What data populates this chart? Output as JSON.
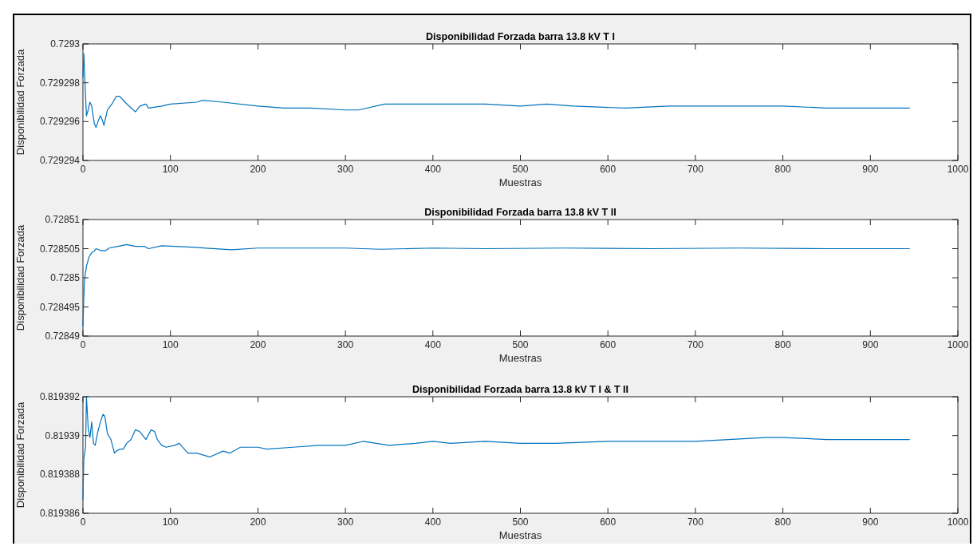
{
  "chart_data": [
    {
      "type": "line",
      "title": "Disponibilidad Forzada barra 13.8 kV T I",
      "xlabel": "Muestras",
      "ylabel": "Disponibilidad Forzada",
      "xlim": [
        0,
        1000
      ],
      "xticks": [
        0,
        100,
        200,
        300,
        400,
        500,
        600,
        700,
        800,
        900,
        1000
      ],
      "ylim": [
        0.729294,
        0.7293
      ],
      "yticks": [
        0.729294,
        0.729296,
        0.729298,
        0.7293
      ],
      "series": [
        {
          "color": "#0072bd",
          "x": [
            0,
            1,
            3,
            4,
            6,
            8,
            10,
            13,
            15,
            18,
            20,
            22,
            24,
            28,
            33,
            38,
            42,
            48,
            55,
            60,
            65,
            72,
            75,
            90,
            100,
            130,
            137,
            160,
            200,
            230,
            260,
            300,
            315,
            345,
            380,
            420,
            460,
            500,
            530,
            560,
            620,
            670,
            750,
            800,
            850,
            880,
            945
          ],
          "values": [
            0.7292983,
            0.7292995,
            0.7292973,
            0.7292963,
            0.7292966,
            0.729297,
            0.7292968,
            0.7292959,
            0.7292957,
            0.7292961,
            0.7292963,
            0.7292961,
            0.7292958,
            0.7292966,
            0.7292969,
            0.7292973,
            0.7292973,
            0.729297,
            0.7292967,
            0.7292965,
            0.7292968,
            0.7292969,
            0.7292967,
            0.7292968,
            0.7292969,
            0.729297,
            0.7292971,
            0.729297,
            0.7292968,
            0.7292967,
            0.7292967,
            0.7292966,
            0.7292966,
            0.7292969,
            0.7292969,
            0.7292969,
            0.7292969,
            0.7292968,
            0.7292969,
            0.7292968,
            0.7292967,
            0.7292968,
            0.7292968,
            0.7292968,
            0.7292967,
            0.7292967,
            0.7292967
          ]
        }
      ]
    },
    {
      "type": "line",
      "title": "Disponibilidad Forzada barra 13.8 kV T II",
      "xlabel": "Muestras",
      "ylabel": "Disponibilidad Forzada",
      "xlim": [
        0,
        1000
      ],
      "xticks": [
        0,
        100,
        200,
        300,
        400,
        500,
        600,
        700,
        800,
        900,
        1000
      ],
      "ylim": [
        0.72849,
        0.72851
      ],
      "yticks": [
        0.72849,
        0.728495,
        0.7285,
        0.728505,
        0.72851
      ],
      "series": [
        {
          "color": "#0072bd",
          "x": [
            0,
            1,
            2,
            4,
            7,
            10,
            13,
            15,
            20,
            25,
            30,
            40,
            50,
            60,
            70,
            75,
            90,
            120,
            170,
            200,
            300,
            340,
            400,
            460,
            550,
            650,
            750,
            850,
            945
          ],
          "values": [
            0.7284917,
            0.7284966,
            0.7284999,
            0.728502,
            0.7285036,
            0.7285043,
            0.7285046,
            0.728505,
            0.7285047,
            0.7285046,
            0.7285051,
            0.7285054,
            0.7285057,
            0.7285054,
            0.7285054,
            0.728505,
            0.7285055,
            0.7285053,
            0.7285048,
            0.7285051,
            0.7285051,
            0.7285049,
            0.7285051,
            0.728505,
            0.7285051,
            0.728505,
            0.7285051,
            0.728505,
            0.728505
          ]
        }
      ]
    },
    {
      "type": "line",
      "title": "Disponibilidad Forzada barra 13.8 kV T I & T II",
      "xlabel": "Muestras",
      "ylabel": "Disponibilidad Forzada",
      "xlim": [
        0,
        1000
      ],
      "xticks": [
        0,
        100,
        200,
        300,
        400,
        500,
        600,
        700,
        800,
        900,
        1000
      ],
      "ylim": [
        0.819386,
        0.819392
      ],
      "yticks": [
        0.819386,
        0.819388,
        0.81939,
        0.819392
      ],
      "series": [
        {
          "color": "#0072bd",
          "x": [
            0,
            1,
            3,
            4,
            6,
            8,
            10,
            12,
            14,
            17,
            20,
            23,
            25,
            28,
            32,
            36,
            38,
            42,
            46,
            50,
            55,
            60,
            65,
            72,
            78,
            82,
            85,
            90,
            95,
            105,
            110,
            120,
            130,
            145,
            160,
            168,
            180,
            200,
            210,
            240,
            270,
            300,
            320,
            350,
            380,
            400,
            420,
            460,
            500,
            540,
            600,
            650,
            700,
            780,
            800,
            850,
            900,
            945
          ],
          "values": [
            0.8193867,
            0.8193888,
            0.8193894,
            0.819392,
            0.8193904,
            0.8193899,
            0.8193907,
            0.8193896,
            0.8193895,
            0.8193902,
            0.8193907,
            0.8193911,
            0.819391,
            0.8193901,
            0.8193898,
            0.8193891,
            0.8193892,
            0.8193893,
            0.8193893,
            0.8193896,
            0.8193898,
            0.8193903,
            0.8193902,
            0.8193898,
            0.8193903,
            0.8193902,
            0.8193898,
            0.8193895,
            0.8193894,
            0.8193895,
            0.8193896,
            0.8193891,
            0.8193891,
            0.8193889,
            0.8193892,
            0.8193891,
            0.8193894,
            0.8193894,
            0.8193893,
            0.8193894,
            0.8193895,
            0.8193895,
            0.8193897,
            0.8193895,
            0.8193896,
            0.8193897,
            0.8193896,
            0.8193897,
            0.8193896,
            0.8193896,
            0.8193897,
            0.8193897,
            0.8193897,
            0.8193899,
            0.8193899,
            0.8193898,
            0.8193898,
            0.8193898
          ]
        }
      ]
    }
  ]
}
